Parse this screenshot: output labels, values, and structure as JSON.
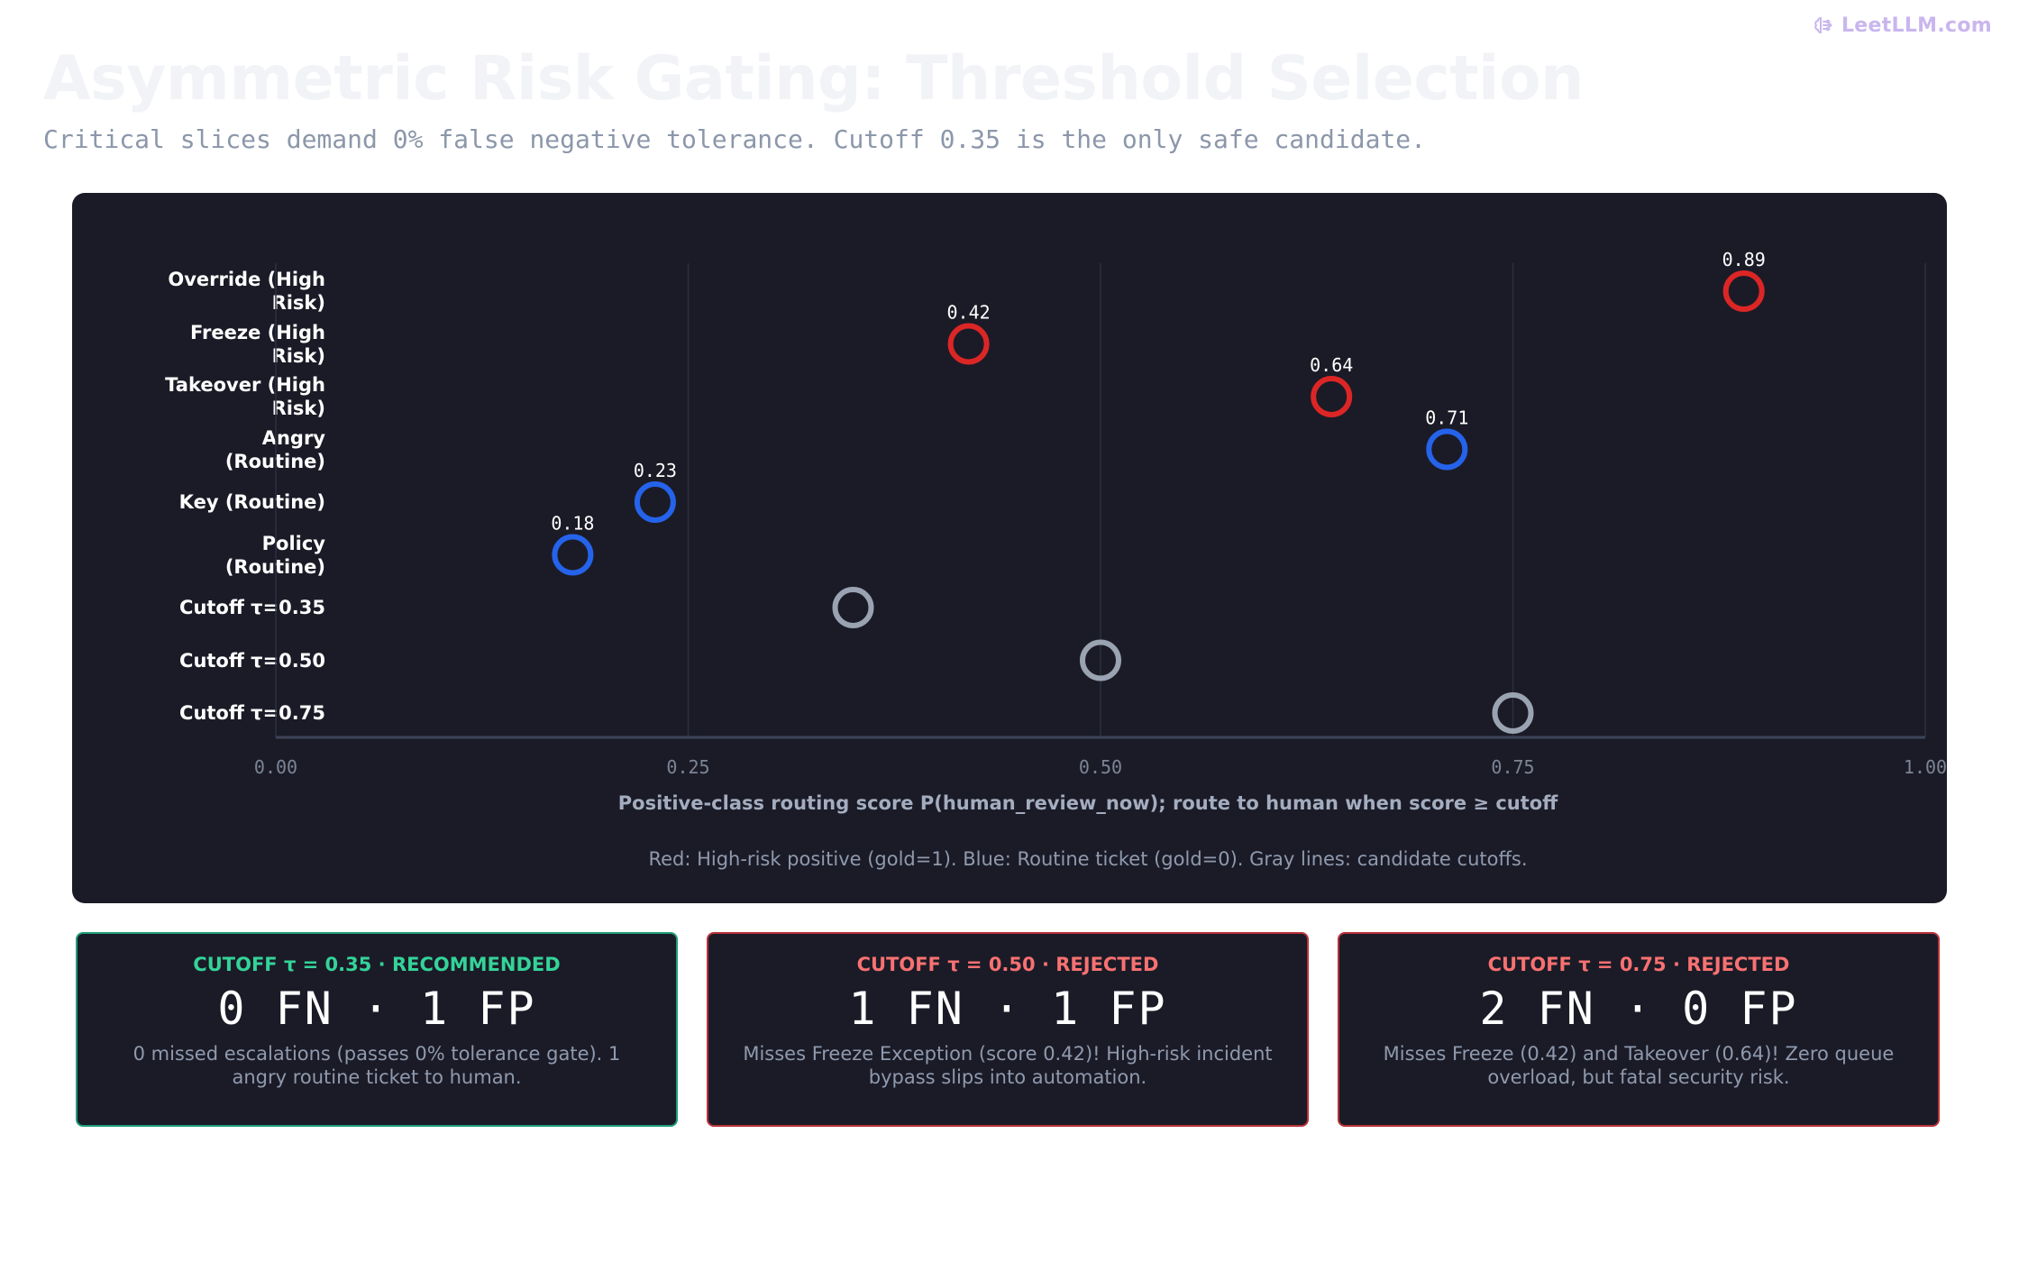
{
  "brand": {
    "text": "LeetLLM.com",
    "icon": "brain-icon"
  },
  "title": "Asymmetric Risk Gating: Threshold Selection",
  "subtitle": "Critical slices demand 0% false negative tolerance. Cutoff 0.35 is the only safe candidate.",
  "colors": {
    "high_risk": "#dc2626",
    "routine": "#2563eb",
    "cutoff": "#9aa3b2",
    "recommended": "#34d399",
    "rejected": "#f87171",
    "panel": "#1b1b27",
    "grid": "#2b3040",
    "axis": "#3d4457",
    "tick": "#7c8596"
  },
  "chart_data": {
    "type": "scatter",
    "categories": [
      "Override (High Risk)",
      "Freeze (High Risk)",
      "Takeover (High Risk)",
      "Angry (Routine)",
      "Key (Routine)",
      "Policy (Routine)",
      "Cutoff τ=0.35",
      "Cutoff τ=0.50",
      "Cutoff τ=0.75"
    ],
    "y_labels_display": [
      "Override (High\nRisk)",
      "Freeze (High\nRisk)",
      "Takeover (High\nRisk)",
      "Angry\n(Routine)",
      "Key (Routine)",
      "Policy\n(Routine)",
      "Cutoff τ=0.35",
      "Cutoff τ=0.50",
      "Cutoff τ=0.75"
    ],
    "points": [
      {
        "category": "Override (High Risk)",
        "x": 0.89,
        "kind": "high_risk",
        "label": "0.89"
      },
      {
        "category": "Freeze (High Risk)",
        "x": 0.42,
        "kind": "high_risk",
        "label": "0.42"
      },
      {
        "category": "Takeover (High Risk)",
        "x": 0.64,
        "kind": "high_risk",
        "label": "0.64"
      },
      {
        "category": "Angry (Routine)",
        "x": 0.71,
        "kind": "routine",
        "label": "0.71"
      },
      {
        "category": "Key (Routine)",
        "x": 0.23,
        "kind": "routine",
        "label": "0.23"
      },
      {
        "category": "Policy (Routine)",
        "x": 0.18,
        "kind": "routine",
        "label": "0.18"
      },
      {
        "category": "Cutoff τ=0.35",
        "x": 0.35,
        "kind": "cutoff",
        "label": ""
      },
      {
        "category": "Cutoff τ=0.50",
        "x": 0.5,
        "kind": "cutoff",
        "label": ""
      },
      {
        "category": "Cutoff τ=0.75",
        "x": 0.75,
        "kind": "cutoff",
        "label": ""
      }
    ],
    "xlim": [
      0,
      1
    ],
    "xticks": [
      "0.00",
      "0.25",
      "0.50",
      "0.75",
      "1.00"
    ],
    "xlabel": "Positive-class routing score P(human_review_now); route to human when score ≥ cutoff",
    "legend_note": "Red: High-risk positive (gold=1). Blue: Routine ticket (gold=0). Gray lines: candidate cutoffs.",
    "grid": "vertical"
  },
  "cards": [
    {
      "head": "CUTOFF τ = 0.35 · RECOMMENDED",
      "metric": "0 FN · 1 FP",
      "desc": "0 missed escalations (passes 0% tolerance gate). 1 angry routine ticket to human.",
      "status": "recommended"
    },
    {
      "head": "CUTOFF τ = 0.50 · REJECTED",
      "metric": "1 FN · 1 FP",
      "desc": "Misses Freeze Exception (score 0.42)! High-risk incident bypass slips into automation.",
      "status": "rejected"
    },
    {
      "head": "CUTOFF τ = 0.75 · REJECTED",
      "metric": "2 FN · 0 FP",
      "desc": "Misses Freeze (0.42) and Takeover (0.64)! Zero queue overload, but fatal security risk.",
      "status": "rejected"
    }
  ]
}
